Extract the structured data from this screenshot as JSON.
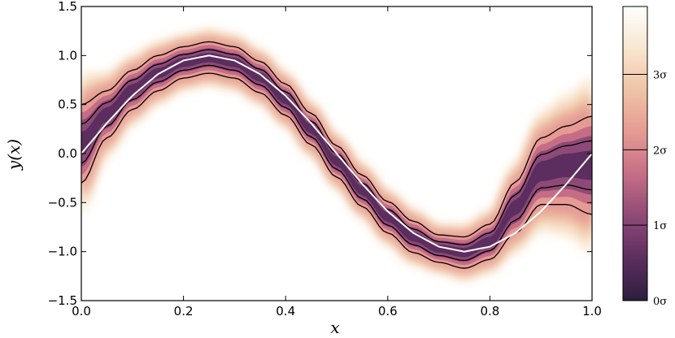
{
  "chart_data": {
    "type": "heatmap",
    "title": "",
    "xlabel": "x",
    "ylabel": "y(x)",
    "xlim": [
      0.0,
      1.0
    ],
    "ylim": [
      -1.5,
      1.5
    ],
    "x_ticks": [
      "0.0",
      "0.2",
      "0.4",
      "0.6",
      "0.8",
      "1.0"
    ],
    "y_ticks": [
      "1.5",
      "1.0",
      "0.5",
      "0.0",
      "−0.5",
      "−1.0",
      "−1.5"
    ],
    "true_function": {
      "description": "y = sin(2πx)",
      "x": [
        0.0,
        0.05,
        0.1,
        0.15,
        0.2,
        0.25,
        0.3,
        0.35,
        0.4,
        0.45,
        0.5,
        0.55,
        0.6,
        0.65,
        0.7,
        0.75,
        0.8,
        0.85,
        0.9,
        0.95,
        1.0
      ],
      "y": [
        0.0,
        0.31,
        0.59,
        0.81,
        0.95,
        1.0,
        0.95,
        0.81,
        0.59,
        0.31,
        0.0,
        -0.31,
        -0.59,
        -0.81,
        -0.95,
        -1.0,
        -0.95,
        -0.81,
        -0.59,
        -0.31,
        0.0
      ],
      "color": "#ffffff"
    },
    "posterior": {
      "x": [
        0.0,
        0.05,
        0.1,
        0.15,
        0.2,
        0.25,
        0.3,
        0.35,
        0.4,
        0.45,
        0.5,
        0.55,
        0.6,
        0.65,
        0.7,
        0.75,
        0.8,
        0.85,
        0.9,
        0.95,
        1.0
      ],
      "mean": [
        0.1,
        0.4,
        0.65,
        0.82,
        0.93,
        0.98,
        0.93,
        0.78,
        0.55,
        0.25,
        -0.08,
        -0.38,
        -0.65,
        -0.85,
        -0.97,
        -1.01,
        -0.9,
        -0.55,
        -0.18,
        -0.12,
        -0.12
      ],
      "sigma": [
        0.2,
        0.12,
        0.1,
        0.09,
        0.08,
        0.08,
        0.08,
        0.08,
        0.08,
        0.08,
        0.08,
        0.08,
        0.08,
        0.08,
        0.07,
        0.08,
        0.09,
        0.13,
        0.17,
        0.2,
        0.25
      ]
    },
    "contour_levels_sigma": [
      1,
      2
    ],
    "colorbar": {
      "ticks": [
        "0σ",
        "1σ",
        "2σ",
        "3σ"
      ],
      "range": [
        0,
        3.9
      ],
      "colors": [
        "#2c1e3d",
        "#5c2d5f",
        "#8e4a76",
        "#c66d86",
        "#e59a93",
        "#efc3a5",
        "#f8e6cf",
        "#ffffff"
      ]
    }
  }
}
